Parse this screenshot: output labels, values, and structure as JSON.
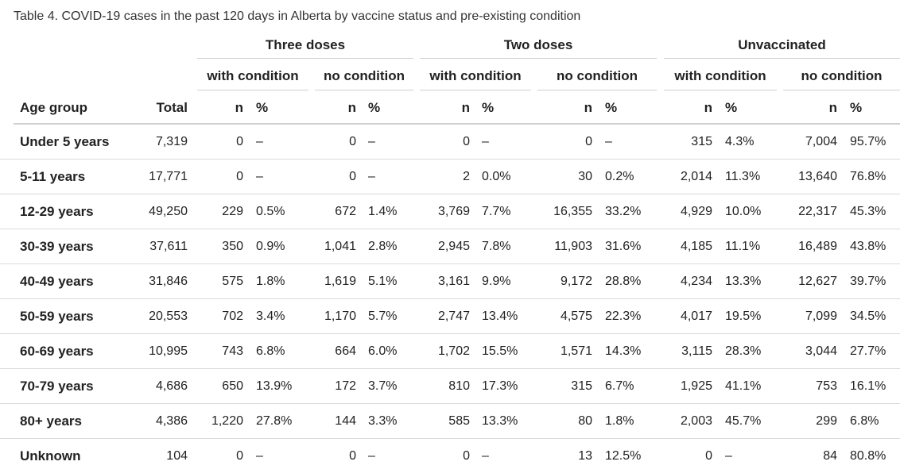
{
  "caption": "Table 4. COVID-19 cases in the past 120 days in Alberta by vaccine status and pre-existing condition",
  "groups": [
    "Three doses",
    "Two doses",
    "Unvaccinated"
  ],
  "subgroups": [
    "with condition",
    "no condition",
    "with condition",
    "no condition",
    "with condition",
    "no condition"
  ],
  "headers": {
    "age": "Age group",
    "total": "Total",
    "n": "n",
    "pct": "%"
  },
  "rows": [
    {
      "age": "Under 5 years",
      "total": "7,319",
      "cells": [
        [
          "0",
          "–"
        ],
        [
          "0",
          "–"
        ],
        [
          "0",
          "–"
        ],
        [
          "0",
          "–"
        ],
        [
          "315",
          "4.3%"
        ],
        [
          "7,004",
          "95.7%"
        ]
      ]
    },
    {
      "age": "5-11 years",
      "total": "17,771",
      "cells": [
        [
          "0",
          "–"
        ],
        [
          "0",
          "–"
        ],
        [
          "2",
          "0.0%"
        ],
        [
          "30",
          "0.2%"
        ],
        [
          "2,014",
          "11.3%"
        ],
        [
          "13,640",
          "76.8%"
        ]
      ]
    },
    {
      "age": "12-29 years",
      "total": "49,250",
      "cells": [
        [
          "229",
          "0.5%"
        ],
        [
          "672",
          "1.4%"
        ],
        [
          "3,769",
          "7.7%"
        ],
        [
          "16,355",
          "33.2%"
        ],
        [
          "4,929",
          "10.0%"
        ],
        [
          "22,317",
          "45.3%"
        ]
      ]
    },
    {
      "age": "30-39 years",
      "total": "37,611",
      "cells": [
        [
          "350",
          "0.9%"
        ],
        [
          "1,041",
          "2.8%"
        ],
        [
          "2,945",
          "7.8%"
        ],
        [
          "11,903",
          "31.6%"
        ],
        [
          "4,185",
          "11.1%"
        ],
        [
          "16,489",
          "43.8%"
        ]
      ]
    },
    {
      "age": "40-49 years",
      "total": "31,846",
      "cells": [
        [
          "575",
          "1.8%"
        ],
        [
          "1,619",
          "5.1%"
        ],
        [
          "3,161",
          "9.9%"
        ],
        [
          "9,172",
          "28.8%"
        ],
        [
          "4,234",
          "13.3%"
        ],
        [
          "12,627",
          "39.7%"
        ]
      ]
    },
    {
      "age": "50-59 years",
      "total": "20,553",
      "cells": [
        [
          "702",
          "3.4%"
        ],
        [
          "1,170",
          "5.7%"
        ],
        [
          "2,747",
          "13.4%"
        ],
        [
          "4,575",
          "22.3%"
        ],
        [
          "4,017",
          "19.5%"
        ],
        [
          "7,099",
          "34.5%"
        ]
      ]
    },
    {
      "age": "60-69 years",
      "total": "10,995",
      "cells": [
        [
          "743",
          "6.8%"
        ],
        [
          "664",
          "6.0%"
        ],
        [
          "1,702",
          "15.5%"
        ],
        [
          "1,571",
          "14.3%"
        ],
        [
          "3,115",
          "28.3%"
        ],
        [
          "3,044",
          "27.7%"
        ]
      ]
    },
    {
      "age": "70-79 years",
      "total": "4,686",
      "cells": [
        [
          "650",
          "13.9%"
        ],
        [
          "172",
          "3.7%"
        ],
        [
          "810",
          "17.3%"
        ],
        [
          "315",
          "6.7%"
        ],
        [
          "1,925",
          "41.1%"
        ],
        [
          "753",
          "16.1%"
        ]
      ]
    },
    {
      "age": "80+ years",
      "total": "4,386",
      "cells": [
        [
          "1,220",
          "27.8%"
        ],
        [
          "144",
          "3.3%"
        ],
        [
          "585",
          "13.3%"
        ],
        [
          "80",
          "1.8%"
        ],
        [
          "2,003",
          "45.7%"
        ],
        [
          "299",
          "6.8%"
        ]
      ]
    },
    {
      "age": "Unknown",
      "total": "104",
      "cells": [
        [
          "0",
          "–"
        ],
        [
          "0",
          "–"
        ],
        [
          "0",
          "–"
        ],
        [
          "13",
          "12.5%"
        ],
        [
          "0",
          "–"
        ],
        [
          "84",
          "80.8%"
        ]
      ]
    }
  ]
}
